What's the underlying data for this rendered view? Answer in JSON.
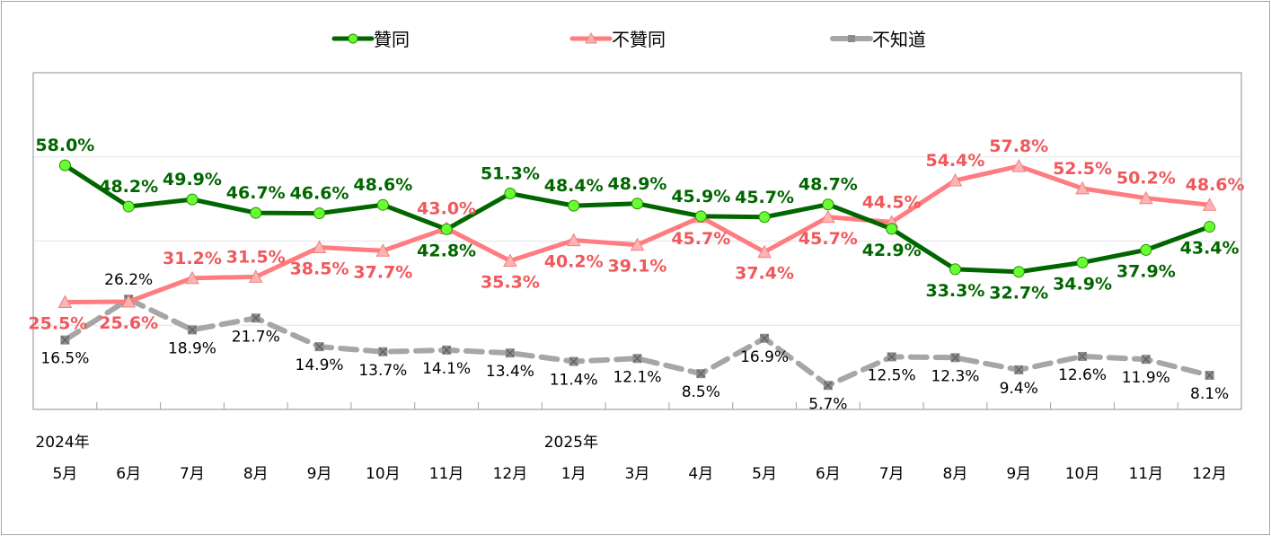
{
  "chart_data": {
    "type": "line",
    "categories": [
      "5月",
      "6月",
      "7月",
      "8月",
      "9月",
      "10月",
      "11月",
      "12月",
      "1月",
      "3月",
      "4月",
      "5月",
      "6月",
      "7月",
      "8月",
      "9月",
      "10月",
      "11月",
      "12月"
    ],
    "year_labels": [
      {
        "index": 0,
        "label": "2024年"
      },
      {
        "index": 8,
        "label": "2025年"
      }
    ],
    "ylim": [
      0,
      80
    ],
    "grid": true,
    "gridlines": [
      20,
      40,
      60
    ],
    "legend_position": "top",
    "series": [
      {
        "name": "贊同",
        "color": "#006600",
        "marker": "circle",
        "marker_color": "#66ff33",
        "label_color": "#006600",
        "values": [
          58.0,
          48.2,
          49.9,
          46.7,
          46.6,
          48.6,
          42.8,
          51.3,
          48.4,
          48.9,
          45.9,
          45.7,
          48.7,
          42.9,
          33.3,
          32.7,
          34.9,
          37.9,
          43.4
        ],
        "labels": [
          "58.0%",
          "48.2%",
          "49.9%",
          "46.7%",
          "46.6%",
          "48.6%",
          "42.8%",
          "51.3%",
          "48.4%",
          "48.9%",
          "45.9%",
          "45.7%",
          "48.7%",
          "42.9%",
          "33.3%",
          "32.7%",
          "34.9%",
          "37.9%",
          "43.4%"
        ]
      },
      {
        "name": "不贊同",
        "color": "#ff7c80",
        "marker": "triangle",
        "marker_color": "#ffb3b3",
        "label_color": "#f0585c",
        "values": [
          25.5,
          25.6,
          31.2,
          31.5,
          38.5,
          37.7,
          43.0,
          35.3,
          40.2,
          39.1,
          45.7,
          37.4,
          45.7,
          44.5,
          54.4,
          57.8,
          52.5,
          50.2,
          48.6
        ],
        "labels": [
          "25.5%",
          "25.6%",
          "31.2%",
          "31.5%",
          "38.5%",
          "37.7%",
          "43.0%",
          "35.3%",
          "40.2%",
          "39.1%",
          "45.7%",
          "37.4%",
          "45.7%",
          "44.5%",
          "54.4%",
          "57.8%",
          "52.5%",
          "50.2%",
          "48.6%"
        ]
      },
      {
        "name": "不知道",
        "color": "#a6a6a6",
        "marker": "x-square",
        "marker_color": "#8c8c8c",
        "label_color": "#000000",
        "dashed": true,
        "values": [
          16.5,
          26.2,
          18.9,
          21.7,
          14.9,
          13.7,
          14.1,
          13.4,
          11.4,
          12.1,
          8.5,
          16.9,
          5.7,
          12.5,
          12.3,
          9.4,
          12.6,
          11.9,
          8.1
        ],
        "labels": [
          "16.5%",
          "26.2%",
          "18.9%",
          "21.7%",
          "14.9%",
          "13.7%",
          "14.1%",
          "13.4%",
          "11.4%",
          "12.1%",
          "8.5%",
          "16.9%",
          "5.7%",
          "12.5%",
          "12.3%",
          "9.4%",
          "12.6%",
          "11.9%",
          "8.1%"
        ]
      }
    ]
  }
}
